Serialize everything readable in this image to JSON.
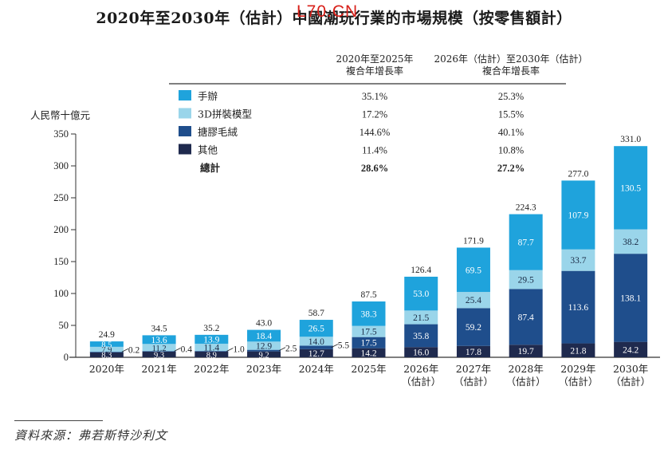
{
  "watermark": "L70.CN",
  "chart_data": {
    "type": "bar",
    "stacked": true,
    "title": "2020年至2030年（估計）中國潮玩行業的市場規模（按零售額計）",
    "ylabel": "人民幣十億元",
    "xlabel": "",
    "ylim": [
      0,
      350
    ],
    "yticks": [
      0,
      50,
      100,
      150,
      200,
      250,
      300,
      350
    ],
    "grid": false,
    "categories": [
      "2020年",
      "2021年",
      "2022年",
      "2023年",
      "2024年",
      "2025年",
      "2026年",
      "2027年",
      "2028年",
      "2029年",
      "2030年"
    ],
    "category_sublabels": [
      "",
      "",
      "",
      "",
      "",
      "",
      "（估計）",
      "（估計）",
      "（估計）",
      "（估計）",
      "（估計）"
    ],
    "series": [
      {
        "name": "其他",
        "color": "#1f2a4e",
        "label_color": "#ffffff",
        "values": [
          8.3,
          9.3,
          8.9,
          9.2,
          12.7,
          14.2,
          16.0,
          17.8,
          19.7,
          21.8,
          24.2
        ]
      },
      {
        "name": "搪膠毛絨",
        "color": "#1f4e8c",
        "label_color": "#ffffff",
        "values": [
          0.2,
          0.4,
          1.0,
          2.5,
          5.5,
          17.5,
          35.8,
          59.2,
          87.4,
          113.6,
          138.1
        ]
      },
      {
        "name": "3D拼裝模型",
        "color": "#9ad5ea",
        "label_color": "#1a2a44",
        "values": [
          7.9,
          11.2,
          11.4,
          12.9,
          14.0,
          17.5,
          21.5,
          25.4,
          29.5,
          33.7,
          38.2
        ]
      },
      {
        "name": "手辦",
        "color": "#1fa3dc",
        "label_color": "#ffffff",
        "values": [
          8.5,
          13.6,
          13.9,
          18.4,
          26.5,
          38.3,
          53.0,
          69.5,
          87.7,
          107.9,
          130.5
        ]
      }
    ],
    "totals": [
      24.9,
      34.5,
      35.2,
      43.0,
      58.7,
      87.5,
      126.4,
      171.9,
      224.3,
      277.0,
      331.0
    ],
    "legend": {
      "placement": "top-center",
      "cagr_headers": [
        [
          "2020年至2025年",
          "複合年增長率"
        ],
        [
          "2026年（估計）至2030年（估計）",
          "複合年增長率"
        ]
      ],
      "rows": [
        {
          "name": "手辦",
          "color": "#1fa3dc",
          "cagr_2020_2025": "35.1%",
          "cagr_2026_2030": "25.3%"
        },
        {
          "name": "3D拼裝模型",
          "color": "#9ad5ea",
          "cagr_2020_2025": "17.2%",
          "cagr_2026_2030": "15.5%"
        },
        {
          "name": "搪膠毛絨",
          "color": "#1f4e8c",
          "cagr_2020_2025": "144.6%",
          "cagr_2026_2030": "40.1%"
        },
        {
          "name": "其他",
          "color": "#1f2a4e",
          "cagr_2020_2025": "11.4%",
          "cagr_2026_2030": "10.8%"
        },
        {
          "name": "總計",
          "color": null,
          "cagr_2020_2025": "28.6%",
          "cagr_2026_2030": "27.2%",
          "bold": true
        }
      ]
    }
  },
  "source": "資料來源：弗若斯特沙利文"
}
